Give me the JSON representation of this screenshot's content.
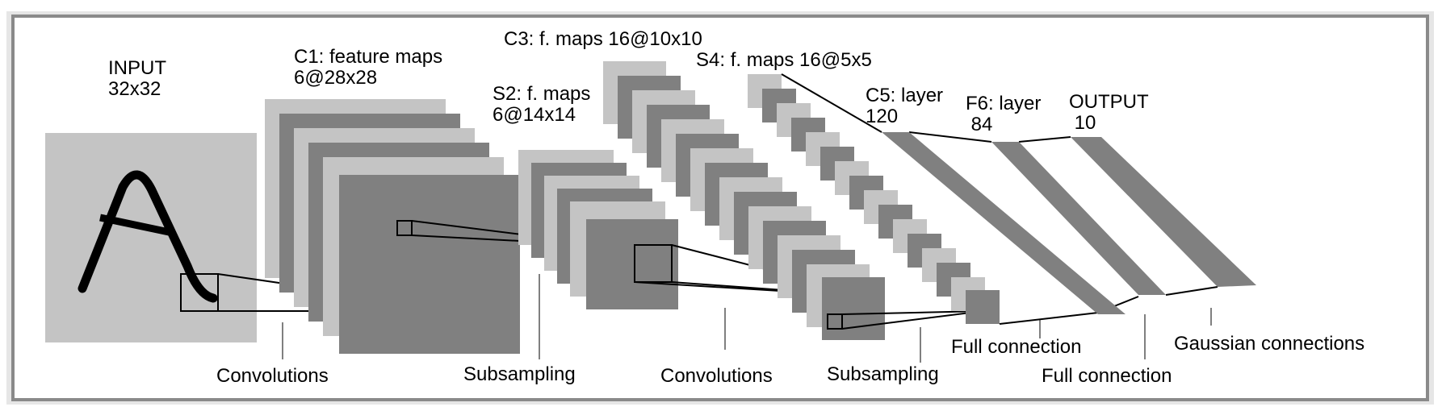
{
  "labels": {
    "input": [
      "INPUT",
      "32x32"
    ],
    "c1": [
      "C1: feature maps",
      "6@28x28"
    ],
    "s2": [
      "S2: f. maps",
      "6@14x14"
    ],
    "c3": [
      "C3: f. maps 16@10x10"
    ],
    "s4": [
      "S4: f. maps 16@5x5"
    ],
    "c5": [
      "C5: layer",
      "120"
    ],
    "f6": [
      "F6: layer",
      " 84"
    ],
    "output": [
      "OUTPUT",
      " 10"
    ]
  },
  "operations": {
    "conv1": "Convolutions",
    "sub1": "Subsampling",
    "conv2": "Convolutions",
    "sub2": "Subsampling",
    "full1": "Full connection",
    "full2": "Full connection",
    "gaussian": "Gaussian connections"
  },
  "colors": {
    "light": "#c4c4c4",
    "dark": "#808080",
    "frame_border": "#8a8a8a",
    "line": "#000000"
  }
}
